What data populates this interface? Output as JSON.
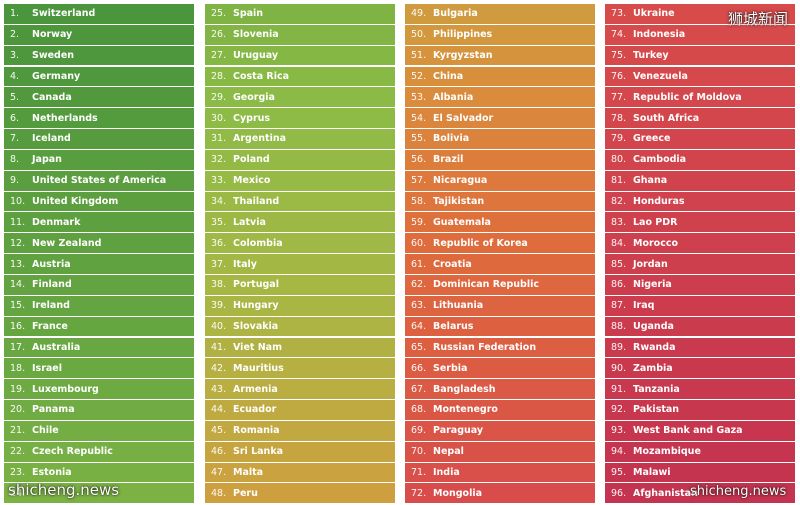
{
  "watermark_top": "狮城新闻",
  "watermark_bottom_left": "shicheng.news",
  "watermark_bottom_right": "shicheng.news",
  "gradient_colors": {
    "start": "#4e9a3e",
    "mid_green": "#8fbc45",
    "mid_yellow": "#c9a640",
    "orange": "#e07b3a",
    "red": "#d94c4c",
    "end": "#c8344f"
  },
  "columns": [
    {
      "items": [
        {
          "num": "1.",
          "name": "Switzerland"
        },
        {
          "num": "2.",
          "name": "Norway"
        },
        {
          "num": "3.",
          "name": "Sweden"
        },
        {
          "num": "4.",
          "name": "Germany"
        },
        {
          "num": "5.",
          "name": "Canada"
        },
        {
          "num": "6.",
          "name": "Netherlands"
        },
        {
          "num": "7.",
          "name": "Iceland"
        },
        {
          "num": "8.",
          "name": "Japan"
        },
        {
          "num": "9.",
          "name": "United States of America"
        },
        {
          "num": "10.",
          "name": "United Kingdom"
        },
        {
          "num": "11.",
          "name": "Denmark"
        },
        {
          "num": "12.",
          "name": "New Zealand"
        },
        {
          "num": "13.",
          "name": "Austria"
        },
        {
          "num": "14.",
          "name": "Finland"
        },
        {
          "num": "15.",
          "name": "Ireland"
        },
        {
          "num": "16.",
          "name": "France"
        },
        {
          "num": "17.",
          "name": "Australia"
        },
        {
          "num": "18.",
          "name": "Israel"
        },
        {
          "num": "19.",
          "name": "Luxembourg"
        },
        {
          "num": "20.",
          "name": "Panama"
        },
        {
          "num": "21.",
          "name": "Chile"
        },
        {
          "num": "22.",
          "name": "Czech Republic"
        },
        {
          "num": "23.",
          "name": "Estonia"
        },
        {
          "num": "24.",
          "name": ""
        }
      ]
    },
    {
      "items": [
        {
          "num": "25.",
          "name": "Spain"
        },
        {
          "num": "26.",
          "name": "Slovenia"
        },
        {
          "num": "27.",
          "name": "Uruguay"
        },
        {
          "num": "28.",
          "name": "Costa Rica"
        },
        {
          "num": "29.",
          "name": "Georgia"
        },
        {
          "num": "30.",
          "name": "Cyprus"
        },
        {
          "num": "31.",
          "name": "Argentina"
        },
        {
          "num": "32.",
          "name": "Poland"
        },
        {
          "num": "33.",
          "name": "Mexico"
        },
        {
          "num": "34.",
          "name": "Thailand"
        },
        {
          "num": "35.",
          "name": "Latvia"
        },
        {
          "num": "36.",
          "name": "Colombia"
        },
        {
          "num": "37.",
          "name": "Italy"
        },
        {
          "num": "38.",
          "name": "Portugal"
        },
        {
          "num": "39.",
          "name": "Hungary"
        },
        {
          "num": "40.",
          "name": "Slovakia"
        },
        {
          "num": "41.",
          "name": "Viet Nam"
        },
        {
          "num": "42.",
          "name": "Mauritius"
        },
        {
          "num": "43.",
          "name": "Armenia"
        },
        {
          "num": "44.",
          "name": "Ecuador"
        },
        {
          "num": "45.",
          "name": "Romania"
        },
        {
          "num": "46.",
          "name": "Sri Lanka"
        },
        {
          "num": "47.",
          "name": "Malta"
        },
        {
          "num": "48.",
          "name": "Peru"
        }
      ]
    },
    {
      "items": [
        {
          "num": "49.",
          "name": "Bulgaria"
        },
        {
          "num": "50.",
          "name": "Philippines"
        },
        {
          "num": "51.",
          "name": "Kyrgyzstan"
        },
        {
          "num": "52.",
          "name": "China"
        },
        {
          "num": "53.",
          "name": "Albania"
        },
        {
          "num": "54.",
          "name": "El Salvador"
        },
        {
          "num": "55.",
          "name": "Bolivia"
        },
        {
          "num": "56.",
          "name": "Brazil"
        },
        {
          "num": "57.",
          "name": "Nicaragua"
        },
        {
          "num": "58.",
          "name": "Tajikistan"
        },
        {
          "num": "59.",
          "name": "Guatemala"
        },
        {
          "num": "60.",
          "name": "Republic of Korea"
        },
        {
          "num": "61.",
          "name": "Croatia"
        },
        {
          "num": "62.",
          "name": "Dominican Republic"
        },
        {
          "num": "63.",
          "name": "Lithuania"
        },
        {
          "num": "64.",
          "name": "Belarus"
        },
        {
          "num": "65.",
          "name": "Russian Federation"
        },
        {
          "num": "66.",
          "name": "Serbia"
        },
        {
          "num": "67.",
          "name": "Bangladesh"
        },
        {
          "num": "68.",
          "name": "Montenegro"
        },
        {
          "num": "69.",
          "name": "Paraguay"
        },
        {
          "num": "70.",
          "name": "Nepal"
        },
        {
          "num": "71.",
          "name": "India"
        },
        {
          "num": "72.",
          "name": "Mongolia"
        }
      ]
    },
    {
      "items": [
        {
          "num": "73.",
          "name": "Ukraine"
        },
        {
          "num": "74.",
          "name": "Indonesia"
        },
        {
          "num": "75.",
          "name": "Turkey"
        },
        {
          "num": "76.",
          "name": "Venezuela"
        },
        {
          "num": "77.",
          "name": "Republic of Moldova"
        },
        {
          "num": "78.",
          "name": "South Africa"
        },
        {
          "num": "79.",
          "name": "Greece"
        },
        {
          "num": "80.",
          "name": "Cambodia"
        },
        {
          "num": "81.",
          "name": "Ghana"
        },
        {
          "num": "82.",
          "name": "Honduras"
        },
        {
          "num": "83.",
          "name": "Lao PDR"
        },
        {
          "num": "84.",
          "name": "Morocco"
        },
        {
          "num": "85.",
          "name": "Jordan"
        },
        {
          "num": "86.",
          "name": "Nigeria"
        },
        {
          "num": "87.",
          "name": "Iraq"
        },
        {
          "num": "88.",
          "name": "Uganda"
        },
        {
          "num": "89.",
          "name": "Rwanda"
        },
        {
          "num": "90.",
          "name": "Zambia"
        },
        {
          "num": "91.",
          "name": "Tanzania"
        },
        {
          "num": "92.",
          "name": "Pakistan"
        },
        {
          "num": "93.",
          "name": "West Bank and Gaza"
        },
        {
          "num": "94.",
          "name": "Mozambique"
        },
        {
          "num": "95.",
          "name": "Malawi"
        },
        {
          "num": "96.",
          "name": "Afghanistan"
        }
      ]
    }
  ]
}
